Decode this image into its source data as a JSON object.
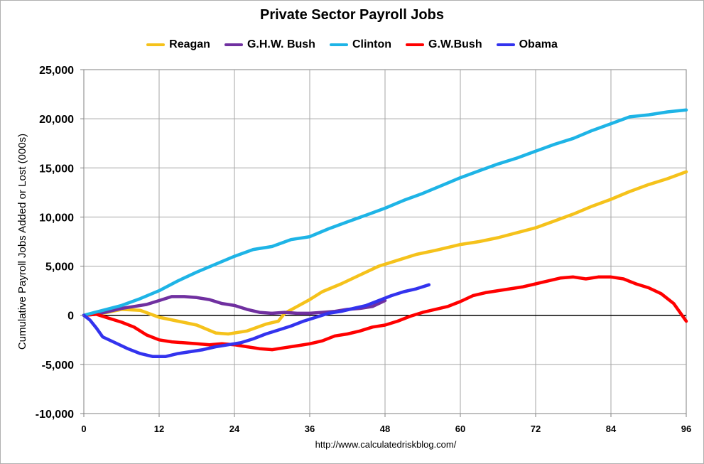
{
  "chart_data": {
    "type": "line",
    "title": "Private Sector Payroll Jobs",
    "xlabel": "",
    "ylabel": "Cumulative Payroll Jobs Added or  Lost (000s)",
    "xlim": [
      0,
      96
    ],
    "ylim": [
      -10000,
      25000
    ],
    "x_ticks": [
      0,
      12,
      24,
      36,
      48,
      60,
      72,
      84,
      96
    ],
    "y_ticks": [
      -10000,
      -5000,
      0,
      5000,
      10000,
      15000,
      20000,
      25000
    ],
    "y_tick_labels": [
      "-10,000",
      "-5,000",
      "0",
      "5,000",
      "10,000",
      "15,000",
      "20,000",
      "25,000"
    ],
    "grid": true,
    "legend_position": "top",
    "series": [
      {
        "name": "Reagan",
        "color": "#f5c21b",
        "points": [
          [
            0,
            0
          ],
          [
            3,
            200
          ],
          [
            6,
            600
          ],
          [
            9,
            500
          ],
          [
            12,
            -200
          ],
          [
            15,
            -600
          ],
          [
            18,
            -1000
          ],
          [
            21,
            -1800
          ],
          [
            23,
            -1900
          ],
          [
            26,
            -1600
          ],
          [
            29,
            -900
          ],
          [
            31,
            -600
          ],
          [
            32,
            200
          ],
          [
            34,
            900
          ],
          [
            36,
            1600
          ],
          [
            38,
            2400
          ],
          [
            41,
            3200
          ],
          [
            44,
            4100
          ],
          [
            47,
            5000
          ],
          [
            50,
            5600
          ],
          [
            53,
            6200
          ],
          [
            56,
            6600
          ],
          [
            60,
            7200
          ],
          [
            63,
            7500
          ],
          [
            66,
            7900
          ],
          [
            69,
            8400
          ],
          [
            72,
            8900
          ],
          [
            75,
            9600
          ],
          [
            78,
            10300
          ],
          [
            81,
            11100
          ],
          [
            84,
            11800
          ],
          [
            87,
            12600
          ],
          [
            90,
            13300
          ],
          [
            93,
            13900
          ],
          [
            96,
            14600
          ]
        ]
      },
      {
        "name": "G.H.W. Bush",
        "color": "#7030a0",
        "points": [
          [
            0,
            0
          ],
          [
            2,
            100
          ],
          [
            4,
            400
          ],
          [
            6,
            700
          ],
          [
            8,
            900
          ],
          [
            10,
            1100
          ],
          [
            12,
            1500
          ],
          [
            14,
            1900
          ],
          [
            16,
            1900
          ],
          [
            18,
            1800
          ],
          [
            20,
            1600
          ],
          [
            22,
            1200
          ],
          [
            24,
            1000
          ],
          [
            26,
            600
          ],
          [
            28,
            300
          ],
          [
            30,
            200
          ],
          [
            32,
            300
          ],
          [
            34,
            200
          ],
          [
            36,
            200
          ],
          [
            38,
            300
          ],
          [
            40,
            400
          ],
          [
            42,
            600
          ],
          [
            44,
            700
          ],
          [
            46,
            900
          ],
          [
            48,
            1500
          ]
        ]
      },
      {
        "name": "Clinton",
        "color": "#1eb4e6",
        "points": [
          [
            0,
            0
          ],
          [
            3,
            500
          ],
          [
            6,
            1000
          ],
          [
            9,
            1700
          ],
          [
            12,
            2500
          ],
          [
            15,
            3500
          ],
          [
            18,
            4400
          ],
          [
            21,
            5200
          ],
          [
            24,
            6000
          ],
          [
            27,
            6700
          ],
          [
            30,
            7000
          ],
          [
            33,
            7700
          ],
          [
            36,
            8000
          ],
          [
            39,
            8800
          ],
          [
            42,
            9500
          ],
          [
            45,
            10200
          ],
          [
            48,
            10900
          ],
          [
            51,
            11700
          ],
          [
            54,
            12400
          ],
          [
            57,
            13200
          ],
          [
            60,
            14000
          ],
          [
            63,
            14700
          ],
          [
            66,
            15400
          ],
          [
            69,
            16000
          ],
          [
            72,
            16700
          ],
          [
            75,
            17400
          ],
          [
            78,
            18000
          ],
          [
            81,
            18800
          ],
          [
            84,
            19500
          ],
          [
            87,
            20200
          ],
          [
            90,
            20400
          ],
          [
            93,
            20700
          ],
          [
            96,
            20900
          ]
        ]
      },
      {
        "name": "G.W.Bush",
        "color": "#ff0000",
        "points": [
          [
            0,
            0
          ],
          [
            2,
            100
          ],
          [
            4,
            -300
          ],
          [
            6,
            -700
          ],
          [
            8,
            -1200
          ],
          [
            10,
            -2000
          ],
          [
            12,
            -2500
          ],
          [
            14,
            -2700
          ],
          [
            16,
            -2800
          ],
          [
            18,
            -2900
          ],
          [
            20,
            -3000
          ],
          [
            22,
            -2900
          ],
          [
            24,
            -3000
          ],
          [
            26,
            -3200
          ],
          [
            28,
            -3400
          ],
          [
            30,
            -3500
          ],
          [
            32,
            -3300
          ],
          [
            34,
            -3100
          ],
          [
            36,
            -2900
          ],
          [
            38,
            -2600
          ],
          [
            40,
            -2100
          ],
          [
            42,
            -1900
          ],
          [
            44,
            -1600
          ],
          [
            46,
            -1200
          ],
          [
            48,
            -1000
          ],
          [
            50,
            -600
          ],
          [
            52,
            -100
          ],
          [
            54,
            300
          ],
          [
            56,
            600
          ],
          [
            58,
            900
          ],
          [
            60,
            1400
          ],
          [
            62,
            2000
          ],
          [
            64,
            2300
          ],
          [
            66,
            2500
          ],
          [
            68,
            2700
          ],
          [
            70,
            2900
          ],
          [
            72,
            3200
          ],
          [
            74,
            3500
          ],
          [
            76,
            3800
          ],
          [
            78,
            3900
          ],
          [
            80,
            3700
          ],
          [
            82,
            3900
          ],
          [
            84,
            3900
          ],
          [
            86,
            3700
          ],
          [
            88,
            3200
          ],
          [
            90,
            2800
          ],
          [
            92,
            2200
          ],
          [
            94,
            1200
          ],
          [
            96,
            -600
          ]
        ]
      },
      {
        "name": "Obama",
        "color": "#3333ee",
        "points": [
          [
            0,
            0
          ],
          [
            1,
            -500
          ],
          [
            2,
            -1300
          ],
          [
            3,
            -2200
          ],
          [
            5,
            -2800
          ],
          [
            7,
            -3400
          ],
          [
            9,
            -3900
          ],
          [
            11,
            -4200
          ],
          [
            13,
            -4200
          ],
          [
            15,
            -3900
          ],
          [
            17,
            -3700
          ],
          [
            19,
            -3500
          ],
          [
            21,
            -3200
          ],
          [
            23,
            -3000
          ],
          [
            25,
            -2800
          ],
          [
            27,
            -2400
          ],
          [
            29,
            -1900
          ],
          [
            31,
            -1500
          ],
          [
            33,
            -1100
          ],
          [
            35,
            -600
          ],
          [
            37,
            -200
          ],
          [
            39,
            200
          ],
          [
            41,
            400
          ],
          [
            43,
            700
          ],
          [
            45,
            1000
          ],
          [
            47,
            1500
          ],
          [
            49,
            2000
          ],
          [
            51,
            2400
          ],
          [
            53,
            2700
          ],
          [
            55,
            3100
          ]
        ]
      }
    ]
  },
  "footer": {
    "source": "http://www.calculatedriskblog.com/"
  }
}
